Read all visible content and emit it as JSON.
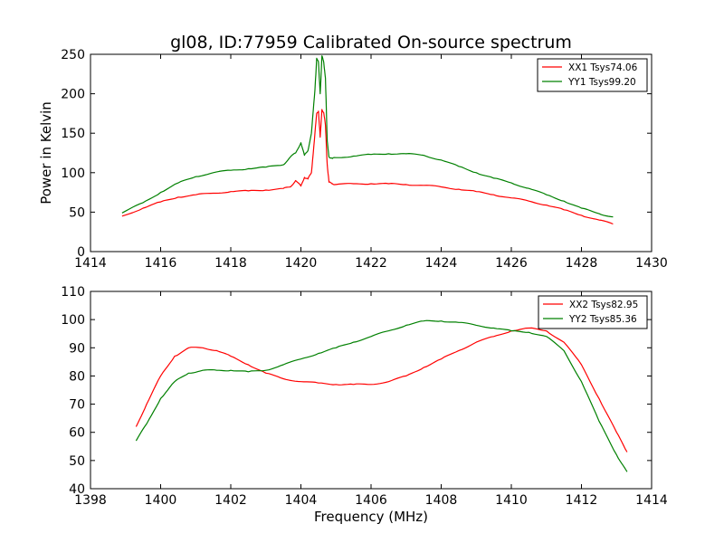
{
  "chart_data": [
    {
      "type": "line",
      "title": "gl08, ID:77959 Calibrated On-source spectrum",
      "xlabel": "",
      "ylabel": "Power in Kelvin",
      "xlim": [
        1414,
        1430
      ],
      "ylim": [
        0,
        250
      ],
      "xticks": [
        "1414",
        "1416",
        "1418",
        "1420",
        "1422",
        "1424",
        "1426",
        "1428",
        "1430"
      ],
      "yticks": [
        "0",
        "50",
        "100",
        "150",
        "200",
        "250"
      ],
      "grid": false,
      "legend": "top-right",
      "series": [
        {
          "name": "XX1 Tsys74.06",
          "color": "#ff0000",
          "x": [
            1414.9,
            1415.5,
            1416.0,
            1416.5,
            1417.0,
            1417.5,
            1418.0,
            1418.5,
            1419.0,
            1419.5,
            1419.7,
            1419.85,
            1420.0,
            1420.1,
            1420.2,
            1420.3,
            1420.4,
            1420.45,
            1420.5,
            1420.55,
            1420.6,
            1420.65,
            1420.7,
            1420.75,
            1420.8,
            1420.9,
            1421.0,
            1421.5,
            1422.0,
            1422.5,
            1423.0,
            1423.5,
            1424.0,
            1424.5,
            1425.0,
            1425.5,
            1426.0,
            1426.5,
            1427.0,
            1427.5,
            1428.0,
            1428.5,
            1428.9
          ],
          "y": [
            45,
            55,
            63,
            69,
            72,
            74,
            76,
            77,
            78,
            80,
            82,
            90,
            83,
            94,
            92,
            100,
            150,
            175,
            178,
            145,
            180,
            176,
            160,
            110,
            88,
            86,
            85,
            86,
            86,
            86,
            85,
            84,
            82,
            79,
            76,
            72,
            68,
            64,
            59,
            53,
            46,
            40,
            35
          ]
        },
        {
          "name": "YY1 Tsys99.20",
          "color": "#008000",
          "x": [
            1414.9,
            1415.5,
            1416.0,
            1416.5,
            1417.0,
            1417.5,
            1418.0,
            1418.5,
            1419.0,
            1419.5,
            1419.7,
            1419.85,
            1420.0,
            1420.1,
            1420.2,
            1420.3,
            1420.4,
            1420.45,
            1420.5,
            1420.55,
            1420.6,
            1420.65,
            1420.7,
            1420.75,
            1420.8,
            1420.9,
            1421.0,
            1421.5,
            1422.0,
            1422.5,
            1423.0,
            1423.5,
            1424.0,
            1424.5,
            1425.0,
            1425.5,
            1426.0,
            1426.5,
            1427.0,
            1427.5,
            1428.0,
            1428.5,
            1428.9
          ],
          "y": [
            49,
            62,
            75,
            87,
            95,
            100,
            103,
            105,
            107,
            110,
            120,
            125,
            138,
            122,
            128,
            150,
            205,
            245,
            240,
            200,
            248,
            240,
            220,
            140,
            120,
            118,
            119,
            121,
            123,
            124,
            124,
            122,
            116,
            108,
            100,
            93,
            87,
            80,
            72,
            64,
            55,
            48,
            44
          ]
        }
      ]
    },
    {
      "type": "line",
      "title": "",
      "xlabel": "Frequency (MHz)",
      "ylabel": "",
      "xlim": [
        1398,
        1414
      ],
      "ylim": [
        40,
        110
      ],
      "xticks": [
        "1398",
        "1400",
        "1402",
        "1404",
        "1406",
        "1408",
        "1410",
        "1412",
        "1414"
      ],
      "yticks": [
        "40",
        "50",
        "60",
        "70",
        "80",
        "90",
        "100",
        "110"
      ],
      "grid": false,
      "legend": "top-right",
      "series": [
        {
          "name": "XX2 Tsys82.95",
          "color": "#ff0000",
          "x": [
            1399.3,
            1399.6,
            1400.0,
            1400.4,
            1400.8,
            1401.2,
            1401.6,
            1402.0,
            1402.5,
            1403.0,
            1403.5,
            1404.0,
            1404.5,
            1405.0,
            1405.5,
            1406.0,
            1406.5,
            1407.0,
            1407.5,
            1408.0,
            1408.5,
            1409.0,
            1409.5,
            1410.0,
            1410.5,
            1411.0,
            1411.5,
            1412.0,
            1412.5,
            1413.0,
            1413.3
          ],
          "y": [
            62,
            70,
            80,
            87,
            90,
            90,
            89,
            87,
            84,
            81,
            79,
            78,
            77.5,
            77,
            77,
            77,
            78,
            80,
            83,
            86,
            89,
            92,
            94,
            96,
            97,
            96,
            92,
            84,
            72,
            60,
            53
          ]
        },
        {
          "name": "YY2 Tsys85.36",
          "color": "#008000",
          "x": [
            1399.3,
            1399.6,
            1400.0,
            1400.4,
            1400.8,
            1401.2,
            1401.6,
            1402.0,
            1402.5,
            1403.0,
            1403.5,
            1404.0,
            1404.5,
            1405.0,
            1405.5,
            1406.0,
            1406.5,
            1407.0,
            1407.5,
            1408.0,
            1408.5,
            1409.0,
            1409.5,
            1410.0,
            1410.5,
            1411.0,
            1411.5,
            1412.0,
            1412.5,
            1413.0,
            1413.3
          ],
          "y": [
            57,
            63,
            72,
            78,
            81,
            82,
            82,
            82,
            81.5,
            82,
            84,
            86,
            88,
            90,
            92,
            94,
            96,
            98,
            99.5,
            99.5,
            99,
            98,
            97,
            96,
            95.5,
            94,
            89,
            78,
            64,
            52,
            46
          ]
        }
      ]
    }
  ]
}
